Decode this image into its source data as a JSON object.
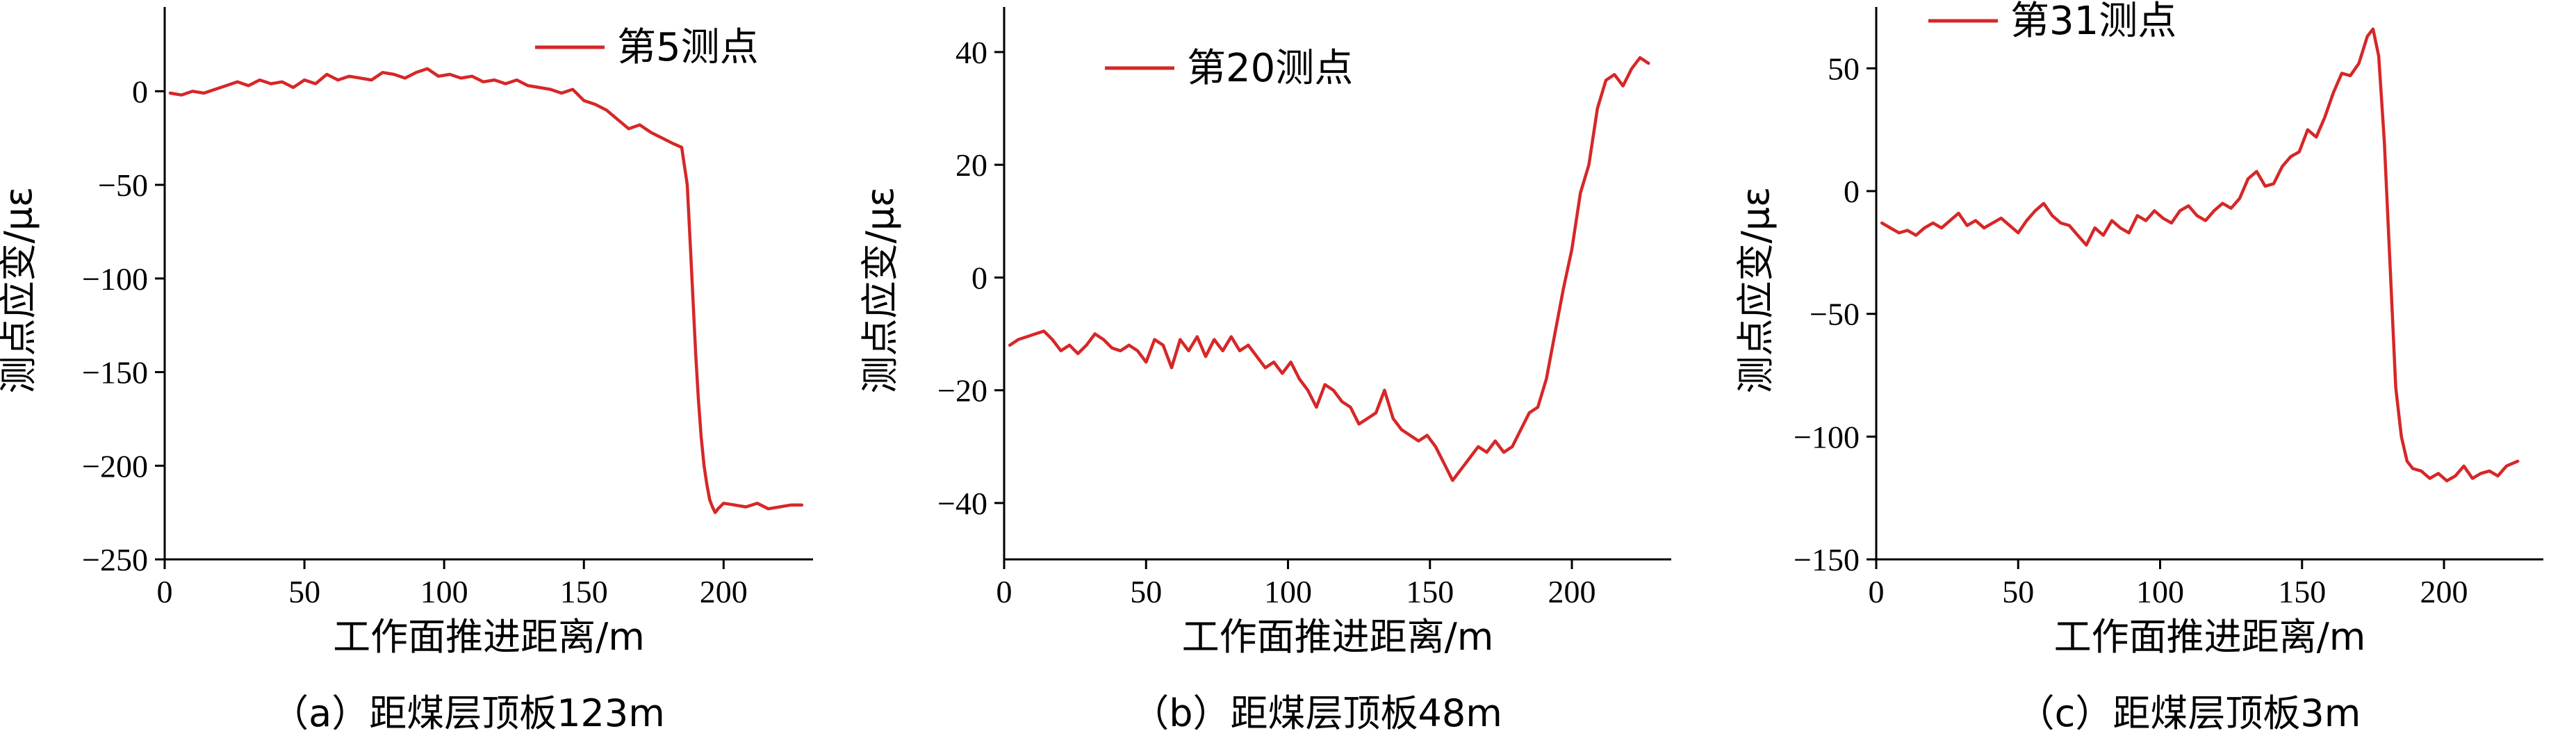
{
  "chart_data": [
    {
      "type": "line",
      "caption": "（a）距煤层顶板123m",
      "xlabel": "工作面推进距离/m",
      "ylabel": "测点应变/με",
      "xlim": [
        0,
        232
      ],
      "ylim": [
        -250,
        45
      ],
      "xticks": [
        0,
        50,
        100,
        150,
        200
      ],
      "yticks": [
        0,
        -50,
        -100,
        -150,
        -200,
        -250
      ],
      "legend_position": "top-right",
      "series": [
        {
          "name": "第5测点",
          "color": "#d62728",
          "x": [
            2,
            6,
            10,
            14,
            18,
            22,
            26,
            30,
            34,
            38,
            42,
            46,
            50,
            54,
            58,
            62,
            66,
            70,
            74,
            78,
            82,
            86,
            90,
            94,
            98,
            102,
            106,
            110,
            114,
            118,
            122,
            126,
            130,
            134,
            138,
            142,
            146,
            150,
            154,
            158,
            162,
            166,
            170,
            174,
            178,
            182,
            185,
            187,
            188,
            189,
            190,
            191,
            192,
            193,
            194,
            195,
            196,
            197,
            198,
            200,
            204,
            208,
            212,
            216,
            220,
            224,
            228
          ],
          "values": [
            -1,
            -2,
            0,
            -1,
            1,
            3,
            5,
            3,
            6,
            4,
            5,
            2,
            6,
            4,
            9,
            6,
            8,
            7,
            6,
            10,
            9,
            7,
            10,
            12,
            8,
            9,
            7,
            8,
            5,
            6,
            4,
            6,
            3,
            2,
            1,
            -1,
            1,
            -5,
            -7,
            -10,
            -15,
            -20,
            -18,
            -22,
            -25,
            -28,
            -30,
            -50,
            -80,
            -110,
            -140,
            -165,
            -185,
            -200,
            -210,
            -218,
            -222,
            -225,
            -223,
            -220,
            -221,
            -222,
            -220,
            -223,
            -222,
            -221,
            -221
          ]
        }
      ]
    },
    {
      "type": "line",
      "caption": "（b）距煤层顶板48m",
      "xlabel": "工作面推进距离/m",
      "ylabel": "测点应变/με",
      "xlim": [
        0,
        235
      ],
      "ylim": [
        -50,
        48
      ],
      "xticks": [
        0,
        50,
        100,
        150,
        200
      ],
      "yticks": [
        40,
        20,
        0,
        -20,
        -40
      ],
      "legend_position": "top-left",
      "series": [
        {
          "name": "第20测点",
          "color": "#d62728",
          "x": [
            2,
            5,
            8,
            11,
            14,
            17,
            20,
            23,
            26,
            29,
            32,
            35,
            38,
            41,
            44,
            47,
            50,
            53,
            56,
            59,
            62,
            65,
            68,
            71,
            74,
            77,
            80,
            83,
            86,
            89,
            92,
            95,
            98,
            101,
            104,
            107,
            110,
            113,
            116,
            119,
            122,
            125,
            128,
            131,
            134,
            137,
            140,
            143,
            146,
            149,
            152,
            155,
            158,
            161,
            164,
            167,
            170,
            173,
            176,
            179,
            182,
            185,
            188,
            191,
            194,
            197,
            200,
            203,
            206,
            209,
            212,
            215,
            218,
            221,
            224,
            227
          ],
          "values": [
            -12,
            -11,
            -10.5,
            -10,
            -9.5,
            -11,
            -13,
            -12,
            -13.5,
            -12,
            -10,
            -11,
            -12.5,
            -13,
            -12,
            -13,
            -15,
            -11,
            -12,
            -16,
            -11,
            -13,
            -10.5,
            -14,
            -11,
            -13,
            -10.5,
            -13,
            -12,
            -14,
            -16,
            -15,
            -17,
            -15,
            -18,
            -20,
            -23,
            -19,
            -20,
            -22,
            -23,
            -26,
            -25,
            -24,
            -20,
            -25,
            -27,
            -28,
            -29,
            -28,
            -30,
            -33,
            -36,
            -34,
            -32,
            -30,
            -31,
            -29,
            -31,
            -30,
            -27,
            -24,
            -23,
            -18,
            -10,
            -2,
            5,
            15,
            20,
            30,
            35,
            36,
            34,
            37,
            39,
            38
          ]
        }
      ]
    },
    {
      "type": "line",
      "caption": "（c）距煤层顶板3m",
      "xlabel": "工作面推进距离/m",
      "ylabel": "测点应变/με",
      "xlim": [
        0,
        235
      ],
      "ylim": [
        -150,
        75
      ],
      "xticks": [
        0,
        50,
        100,
        150,
        200
      ],
      "yticks": [
        50,
        0,
        -50,
        -100,
        -150
      ],
      "legend_position": "top-left",
      "series": [
        {
          "name": "第31测点",
          "color": "#d62728",
          "x": [
            2,
            5,
            8,
            11,
            14,
            17,
            20,
            23,
            26,
            29,
            32,
            35,
            38,
            41,
            44,
            47,
            50,
            53,
            56,
            59,
            62,
            65,
            68,
            71,
            74,
            77,
            80,
            83,
            86,
            89,
            92,
            95,
            98,
            101,
            104,
            107,
            110,
            113,
            116,
            119,
            122,
            125,
            128,
            131,
            134,
            137,
            140,
            143,
            146,
            149,
            152,
            155,
            158,
            161,
            164,
            167,
            170,
            173,
            175,
            177,
            179,
            181,
            183,
            185,
            187,
            189,
            192,
            195,
            198,
            201,
            204,
            207,
            210,
            213,
            216,
            219,
            222,
            226
          ],
          "values": [
            -13,
            -15,
            -17,
            -16,
            -18,
            -15,
            -13,
            -15,
            -12,
            -9,
            -14,
            -12,
            -15,
            -13,
            -11,
            -14,
            -17,
            -12,
            -8,
            -5,
            -10,
            -13,
            -14,
            -18,
            -22,
            -15,
            -18,
            -12,
            -15,
            -17,
            -10,
            -12,
            -8,
            -11,
            -13,
            -8,
            -6,
            -10,
            -12,
            -8,
            -5,
            -7,
            -3,
            5,
            8,
            2,
            3,
            10,
            14,
            16,
            25,
            22,
            30,
            40,
            48,
            47,
            52,
            63,
            66,
            55,
            20,
            -30,
            -80,
            -100,
            -110,
            -113,
            -114,
            -117,
            -115,
            -118,
            -116,
            -112,
            -117,
            -115,
            -114,
            -116,
            -112,
            -110
          ]
        }
      ]
    }
  ]
}
